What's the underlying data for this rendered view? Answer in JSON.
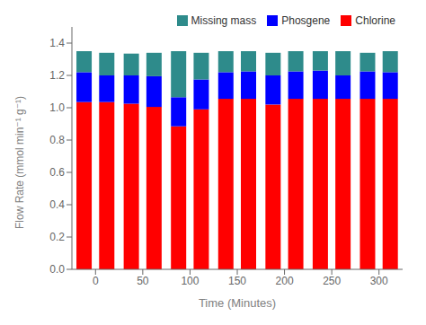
{
  "chart_data": {
    "type": "bar",
    "stacked": true,
    "xlabel": "Time (Minutes)",
    "ylabel": "Flow Rate (mmol min⁻¹ g⁻¹)",
    "x": [
      -12,
      12,
      38,
      62,
      88,
      112,
      138,
      162,
      188,
      212,
      238,
      262,
      288,
      312
    ],
    "series": [
      {
        "name": "Chlorine",
        "color": "#FF0000",
        "values": [
          1.035,
          1.035,
          1.025,
          1.005,
          0.885,
          0.99,
          1.055,
          1.055,
          1.02,
          1.055,
          1.055,
          1.055,
          1.055,
          1.055
        ]
      },
      {
        "name": "Phosgene",
        "color": "#0000FF",
        "values": [
          0.185,
          0.165,
          0.175,
          0.19,
          0.18,
          0.185,
          0.165,
          0.17,
          0.18,
          0.17,
          0.175,
          0.145,
          0.17,
          0.165
        ]
      },
      {
        "name": "Missing mass",
        "color": "#2E8B8B",
        "values": [
          0.13,
          0.14,
          0.135,
          0.145,
          0.285,
          0.165,
          0.13,
          0.125,
          0.14,
          0.125,
          0.12,
          0.15,
          0.115,
          0.13
        ]
      }
    ],
    "xlim": [
      -25,
      325
    ],
    "xticks": [
      0,
      50,
      100,
      150,
      200,
      250,
      300
    ],
    "ylim": [
      0.0,
      1.5
    ],
    "yticks": [
      {
        "value": 0,
        "label": "0.0"
      },
      0.2,
      0.4,
      0.6,
      0.8,
      {
        "value": 1,
        "label": "1.0"
      },
      1.2,
      1.4
    ],
    "legend": "upper right",
    "grid": false
  }
}
